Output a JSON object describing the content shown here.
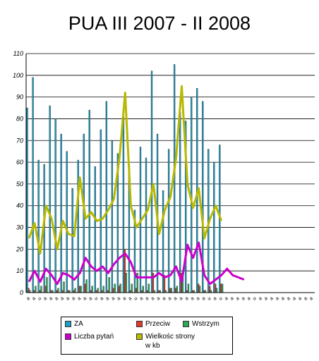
{
  "chart_data": {
    "type": "bar",
    "title": "PUA III 2007 - II 2008",
    "ylim": [
      0,
      110
    ],
    "yticks": [
      0,
      10,
      20,
      30,
      40,
      50,
      60,
      70,
      80,
      90,
      100,
      110
    ],
    "grid": true,
    "legend_position": "bottom",
    "categories": [
      "a",
      "a",
      "u",
      "a",
      "a",
      "a",
      "a",
      "a",
      "a",
      "a",
      "a",
      "a",
      "u",
      "a",
      "a",
      "a",
      "a",
      "a",
      "a",
      "u",
      "a",
      "a",
      "a",
      "a",
      "a",
      "a",
      "a",
      "a",
      "a",
      "a",
      "a",
      "a",
      "u",
      "a",
      "u",
      "a",
      "a",
      "a",
      "a",
      "a",
      "u",
      "a",
      "a",
      "a",
      "a",
      "a",
      "a",
      "a",
      "a",
      "a",
      "a"
    ],
    "series": [
      {
        "name": "ZA",
        "kind": "bar",
        "color": "#1f9fc4",
        "values": [
          85,
          99,
          61,
          59,
          86,
          80,
          73,
          65,
          48,
          61,
          73,
          84,
          58,
          75,
          88,
          70,
          64,
          81,
          59,
          38,
          67,
          62,
          102,
          73,
          47,
          66,
          105,
          83,
          79,
          90,
          94,
          88,
          66,
          60,
          68,
          0,
          0,
          0,
          0,
          0,
          0,
          0,
          0,
          0,
          0,
          0,
          0,
          0,
          0,
          0,
          0
        ]
      },
      {
        "name": "Przeciw",
        "kind": "bar",
        "color": "#e03a2a",
        "values": [
          2,
          1,
          1,
          3,
          1,
          1,
          1,
          1,
          1,
          3,
          4,
          1,
          1,
          1,
          1,
          2,
          3,
          20,
          1,
          2,
          1,
          1,
          9,
          1,
          8,
          2,
          2,
          9,
          1,
          1,
          4,
          1,
          3,
          4,
          4,
          0,
          0,
          0,
          0,
          0,
          0,
          0,
          0,
          0,
          0,
          0,
          0,
          0,
          0,
          0,
          0
        ]
      },
      {
        "name": "Wstrzym",
        "kind": "bar",
        "color": "#2ea858",
        "values": [
          1,
          3,
          3,
          7,
          1,
          2,
          5,
          1,
          2,
          3,
          6,
          3,
          2,
          3,
          7,
          4,
          4,
          9,
          4,
          9,
          3,
          4,
          1,
          1,
          1,
          2,
          3,
          9,
          4,
          1,
          3,
          1,
          1,
          2,
          4,
          0,
          0,
          0,
          0,
          0,
          0,
          0,
          0,
          0,
          0,
          0,
          0,
          0,
          0,
          0,
          0
        ]
      },
      {
        "name": "Liczba pytań",
        "kind": "line",
        "color": "#cc00cc",
        "values": [
          5,
          10,
          5,
          11,
          8,
          4,
          9,
          8,
          6,
          9,
          16,
          12,
          10,
          12,
          9,
          13,
          16,
          18,
          14,
          7,
          7,
          7,
          7,
          9,
          7,
          8,
          12,
          5,
          22,
          16,
          23,
          8,
          4,
          6,
          8,
          11,
          8,
          7,
          6,
          0,
          0,
          0,
          0,
          0,
          0,
          0,
          0,
          0,
          0,
          0,
          0
        ]
      },
      {
        "name": "Wielkośc strony w kb",
        "kind": "line",
        "color": "#b8b800",
        "values": [
          25,
          32,
          18,
          40,
          34,
          20,
          33,
          27,
          26,
          53,
          34,
          37,
          33,
          34,
          38,
          43,
          62,
          92,
          40,
          30,
          34,
          38,
          50,
          27,
          38,
          44,
          62,
          95,
          50,
          39,
          48,
          25,
          34,
          40,
          33,
          0,
          0,
          0,
          0,
          0,
          0,
          0,
          0,
          0,
          0,
          0,
          0,
          0,
          0,
          0,
          0
        ]
      }
    ]
  },
  "legend": {
    "za": "ZA",
    "przeciw": "Przeciw",
    "wstrzym": "Wstrzym",
    "liczba": "Liczba pytań",
    "wielkosc_line1": "Wielkośc strony",
    "wielkosc_line2": "w kb"
  }
}
